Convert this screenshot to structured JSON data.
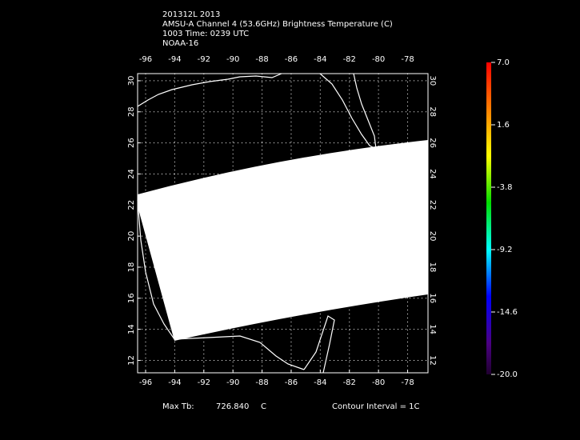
{
  "chart_data": {
    "type": "map",
    "title_lines": [
      "201312L 2013",
      "AMSU-A Channel 4 (53.6GHz) Brightness Temperature (C)",
      "1003 Time: 0239 UTC",
      "NOAA-16"
    ],
    "xlim": [
      -96.55,
      -76.6
    ],
    "xticks": [
      -96,
      -94,
      -92,
      -90,
      -88,
      -86,
      -84,
      -82,
      -80,
      -78
    ],
    "ylim": [
      11.2,
      30.46
    ],
    "yticks": [
      12,
      14,
      16,
      18,
      20,
      22,
      24,
      26,
      28,
      30
    ],
    "grid": true,
    "colorbar": {
      "lim": [
        -20,
        7
      ],
      "ticks": [
        {
          "value": 7,
          "label": "7.0"
        },
        1.6,
        -3.8,
        -9.2,
        -14.6,
        {
          "value": -20,
          "label": "-20.0"
        }
      ]
    },
    "footer": {
      "max_label": "Max Tb:",
      "max_value": "726.840",
      "max_unit": "C",
      "contour": "Contour Interval = 1C"
    }
  }
}
